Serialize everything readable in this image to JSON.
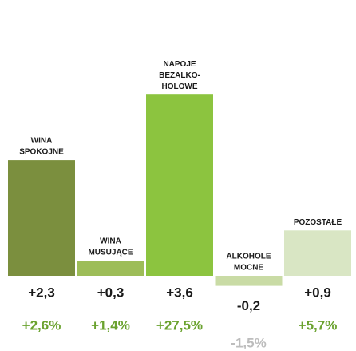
{
  "chart_data": {
    "type": "bar",
    "categories": [
      [
        "WINA",
        "SPOKOJNE"
      ],
      [
        "WINA",
        "MUSUJĄCE"
      ],
      [
        "NAPOJE",
        "BEZALKO-",
        "HOLOWE"
      ],
      [
        "ALKOHOLE",
        "MOCNE"
      ],
      [
        "POZOSTAŁE"
      ]
    ],
    "values": [
      2.3,
      0.3,
      3.6,
      -0.2,
      0.9
    ],
    "value_labels": [
      "+2,3",
      "+0,3",
      "+3,6",
      "-0,2",
      "+0,9"
    ],
    "colors": [
      "#7b8f3e",
      "#9dbd58",
      "#8cc43f",
      "#c9dba5",
      "#d9e6c4"
    ],
    "changes": [
      2.6,
      1.4,
      27.5,
      -1.5,
      5.7
    ],
    "change_labels": [
      "+2,6%",
      "+1,4%",
      "+27,5%",
      "-1,5%",
      "+5,7%"
    ],
    "change_colors": [
      "#6aa22e",
      "#6aa22e",
      "#6aa22e",
      "#bdbdbd",
      "#6aa22e"
    ]
  }
}
